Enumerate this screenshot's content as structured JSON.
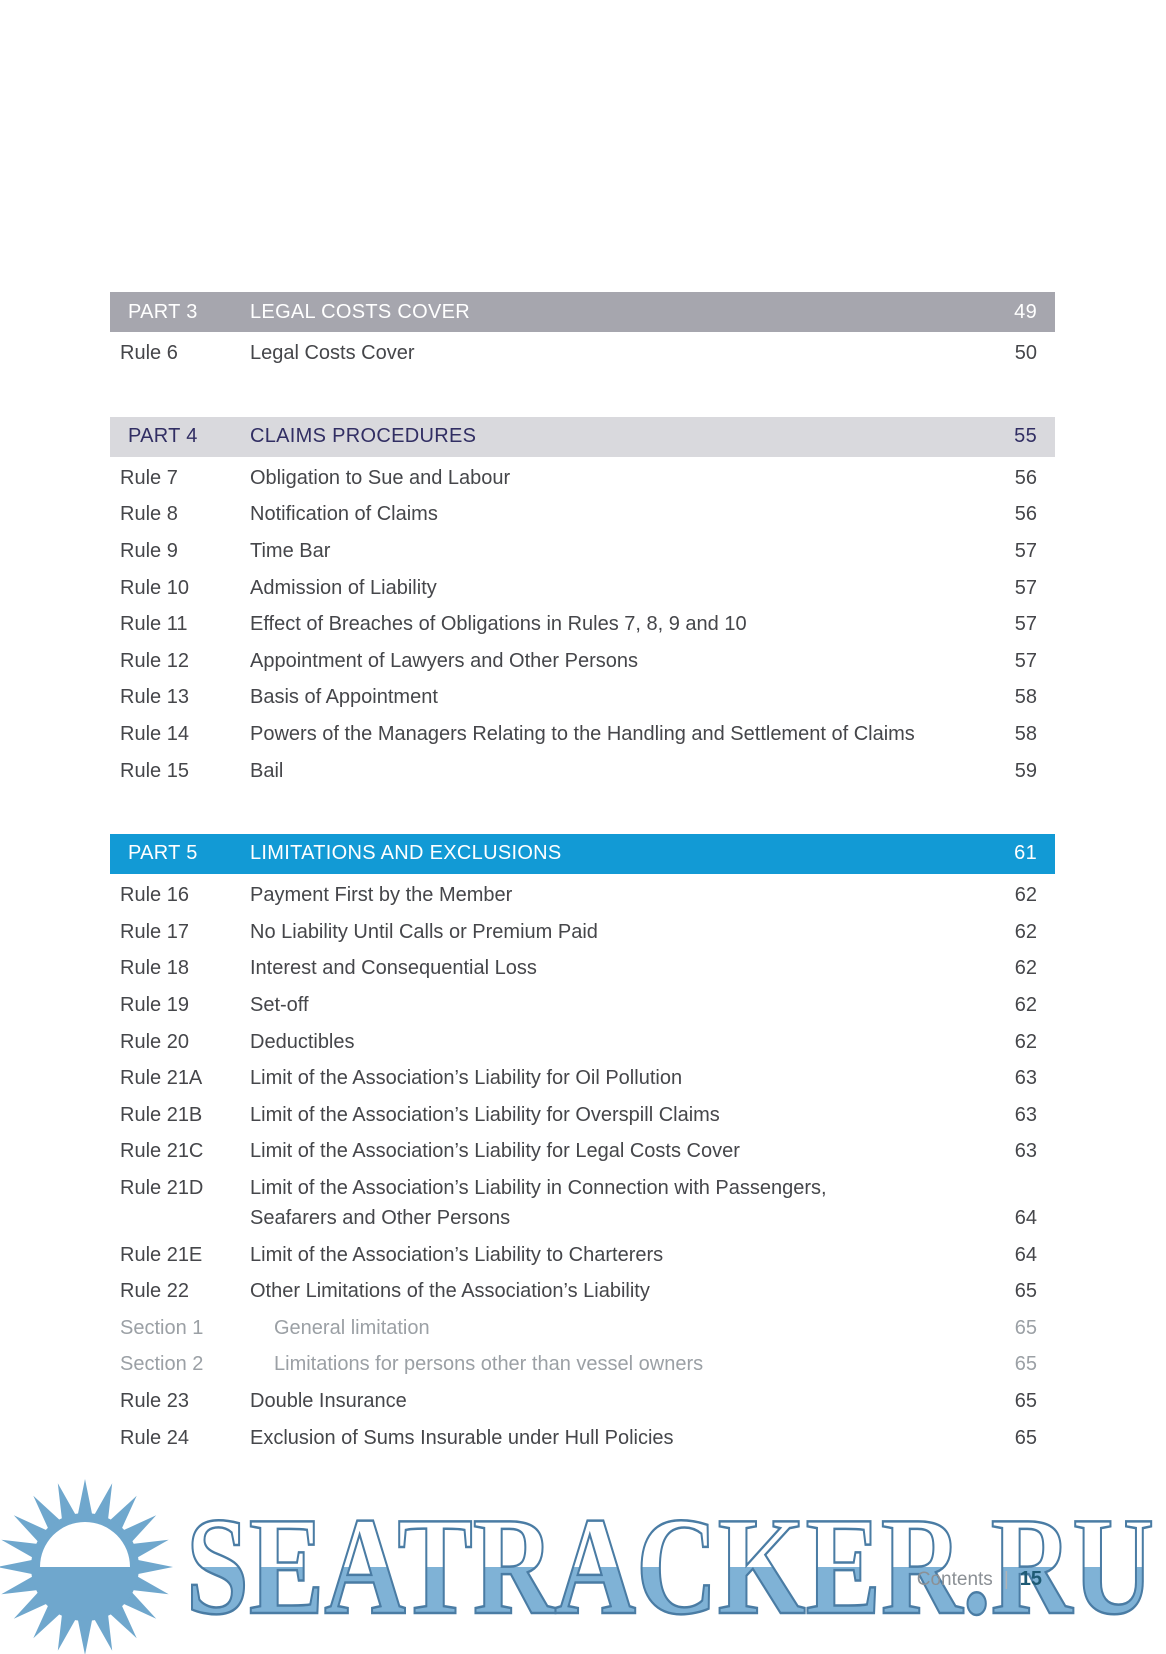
{
  "toc": {
    "parts": [
      {
        "label": "PART 3",
        "title": "LEGAL COSTS COVER",
        "page": "49",
        "style": "solid-gray",
        "entries": [
          {
            "type": "rule",
            "label": "Rule 6",
            "title": "Legal Costs Cover",
            "page": "50"
          }
        ]
      },
      {
        "label": "PART 4",
        "title": "CLAIMS PROCEDURES",
        "page": "55",
        "style": "light-gray",
        "entries": [
          {
            "type": "rule",
            "label": "Rule 7",
            "title": "Obligation to Sue and Labour",
            "page": "56"
          },
          {
            "type": "rule",
            "label": "Rule 8",
            "title": "Notification of Claims",
            "page": "56"
          },
          {
            "type": "rule",
            "label": "Rule 9",
            "title": "Time Bar",
            "page": "57"
          },
          {
            "type": "rule",
            "label": "Rule 10",
            "title": "Admission of Liability",
            "page": "57"
          },
          {
            "type": "rule",
            "label": "Rule 11",
            "title": "Effect of Breaches of Obligations in Rules 7, 8, 9 and 10",
            "page": "57"
          },
          {
            "type": "rule",
            "label": "Rule 12",
            "title": "Appointment of Lawyers and Other Persons",
            "page": "57"
          },
          {
            "type": "rule",
            "label": "Rule 13",
            "title": "Basis of Appointment",
            "page": "58"
          },
          {
            "type": "rule",
            "label": "Rule 14",
            "title": "Powers of the Managers Relating to the Handling and Settlement of Claims",
            "page": "58"
          },
          {
            "type": "rule",
            "label": "Rule 15",
            "title": "Bail",
            "page": "59"
          }
        ]
      },
      {
        "label": "PART 5",
        "title": "LIMITATIONS AND EXCLUSIONS",
        "page": "61",
        "style": "blue",
        "entries": [
          {
            "type": "rule",
            "label": "Rule 16",
            "title": "Payment First by the Member",
            "page": "62"
          },
          {
            "type": "rule",
            "label": "Rule 17",
            "title": "No Liability Until Calls or Premium Paid",
            "page": "62"
          },
          {
            "type": "rule",
            "label": "Rule 18",
            "title": "Interest and Consequential Loss",
            "page": "62"
          },
          {
            "type": "rule",
            "label": "Rule 19",
            "title": "Set-off",
            "page": "62"
          },
          {
            "type": "rule",
            "label": "Rule 20",
            "title": "Deductibles",
            "page": "62"
          },
          {
            "type": "rule",
            "label": "Rule 21A",
            "title": "Limit of the Association’s Liability for Oil Pollution",
            "page": "63"
          },
          {
            "type": "rule",
            "label": "Rule 21B",
            "title": "Limit of the Association’s Liability for Overspill Claims",
            "page": "63"
          },
          {
            "type": "rule",
            "label": "Rule 21C",
            "title": "Limit of the Association’s Liability for Legal Costs Cover",
            "page": "63"
          },
          {
            "type": "rule",
            "label": "Rule 21D",
            "title": "Limit of the Association’s Liability in Connection with Passengers,",
            "title2": "Seafarers and Other Persons",
            "page": "64"
          },
          {
            "type": "rule",
            "label": "Rule 21E",
            "title": "Limit of the Association’s Liability to Charterers",
            "page": "64"
          },
          {
            "type": "rule",
            "label": "Rule 22",
            "title": "Other Limitations of the Association’s Liability",
            "page": "65"
          },
          {
            "type": "section",
            "label": "Section 1",
            "title": "General limitation",
            "page": "65"
          },
          {
            "type": "section",
            "label": "Section 2",
            "title": "Limitations for persons other than vessel owners",
            "page": "65"
          },
          {
            "type": "rule",
            "label": "Rule 23",
            "title": "Double Insurance",
            "page": "65"
          },
          {
            "type": "rule",
            "label": "Rule 24",
            "title": "Exclusion of Sums Insurable under Hull Policies",
            "page": "65"
          }
        ]
      }
    ]
  },
  "footer": {
    "section": "Contents",
    "separator": "|",
    "page_number": "15"
  },
  "watermark": {
    "text": "SEATRACKER.RU",
    "sun_icon": "sun-logo"
  },
  "colors": {
    "part3_bar": "#a6a6ae",
    "part3_text": "#ffffff",
    "part4_bar": "#d9d9dd",
    "part4_text": "#312e63",
    "part5_bar": "#129ad5",
    "part5_text": "#ffffff",
    "body_text": "#45464a",
    "section_text": "#9ba0a5",
    "footer_text": "#8b9095",
    "footer_page": "#1e5a74",
    "watermark_fill": "#7fb2d6",
    "watermark_stroke": "#4a7ca4",
    "sun_blue": "#6fa7cd"
  }
}
